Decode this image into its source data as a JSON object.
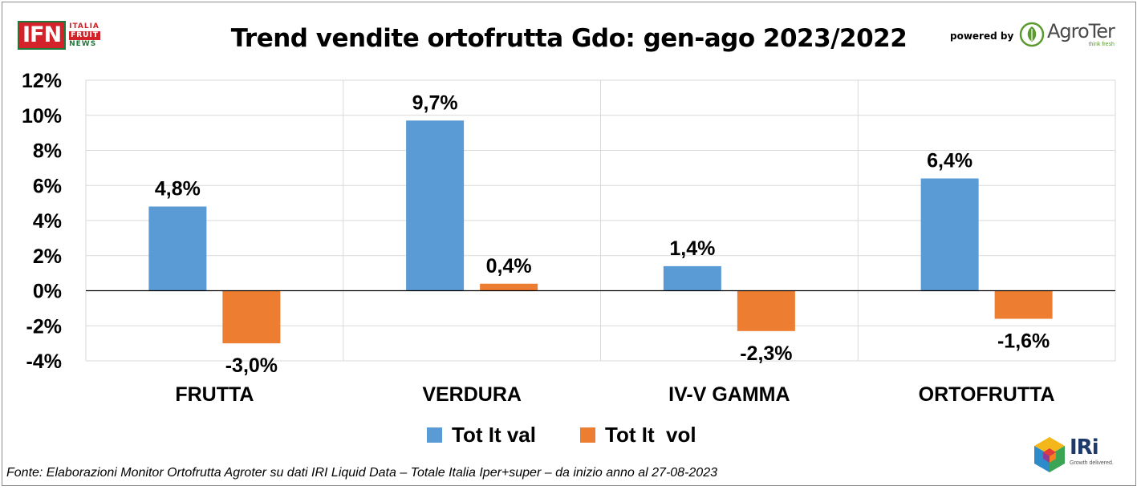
{
  "header": {
    "title": "Trend vendite ortofrutta Gdo: gen-ago 2023/2022",
    "ifn_logo": {
      "main": "IFN",
      "line1": "ITALIA",
      "line2": "FRUIT",
      "line3": "NEWS"
    },
    "powered_by": "powered by",
    "agroter_logo": {
      "name": "AgroTer",
      "tagline": "think fresh"
    }
  },
  "colors": {
    "series_val": "#5b9bd5",
    "series_vol": "#ed7d31",
    "ifn_red": "#d2232a",
    "ifn_green": "#1e7a3a"
  },
  "chart_data": {
    "type": "bar",
    "title": "Trend vendite ortofrutta Gdo: gen-ago 2023/2022",
    "categories": [
      "FRUTTA",
      "VERDURA",
      "IV-V GAMMA",
      "ORTOFRUTTA"
    ],
    "series": [
      {
        "name": "Tot It val",
        "values": [
          4.8,
          9.7,
          1.4,
          6.4
        ],
        "labels": [
          "4,8%",
          "9,7%",
          "1,4%",
          "6,4%"
        ]
      },
      {
        "name": "Tot It  vol",
        "values": [
          -3.0,
          0.4,
          -2.3,
          -1.6
        ],
        "labels": [
          "-3,0%",
          "0,4%",
          "-2,3%",
          "-1,6%"
        ]
      }
    ],
    "ylim": [
      -4,
      12
    ],
    "yticks": [
      12,
      10,
      8,
      6,
      4,
      2,
      0,
      -2,
      -4
    ],
    "ytick_labels": [
      "12%",
      "10%",
      "8%",
      "6%",
      "4%",
      "2%",
      "0%",
      "-2%",
      "-4%"
    ],
    "grid": true,
    "legend": "bottom"
  },
  "footer": {
    "source": "Fonte: Elaborazioni Monitor Ortofrutta Agroter su dati IRI Liquid Data – Totale Italia Iper+super –  da inizio anno al 27-08-2023"
  },
  "iri_logo": {
    "name": "IRi",
    "tagline": "Growth delivered."
  }
}
